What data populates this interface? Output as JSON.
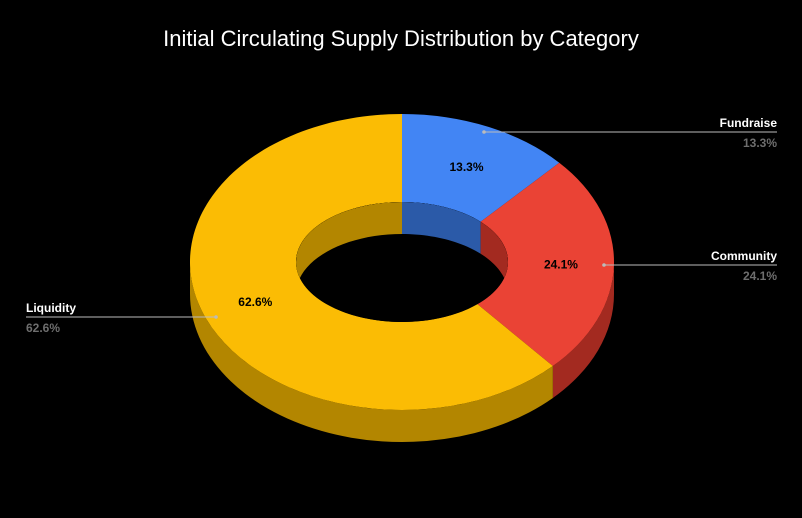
{
  "chart_data": {
    "type": "pie",
    "style": "3d-donut",
    "title": "Initial Circulating Supply Distribution by Category",
    "legend": "callouts",
    "slices": [
      {
        "name": "Fundraise",
        "value": 13.3,
        "label": "13.3%",
        "color": "#4285f4",
        "side_color": "#2b5aa8"
      },
      {
        "name": "Community",
        "value": 24.1,
        "label": "24.1%",
        "color": "#ea4335",
        "side_color": "#a32a20"
      },
      {
        "name": "Liquidity",
        "value": 62.6,
        "label": "62.6%",
        "color": "#fbbc04",
        "side_color": "#b38600"
      }
    ]
  },
  "colors": {
    "background": "#000000",
    "title": "#ffffff",
    "callout_name": "#ffffff",
    "callout_value": "#6e6e6e",
    "leader_line": "#bbbbbb"
  }
}
